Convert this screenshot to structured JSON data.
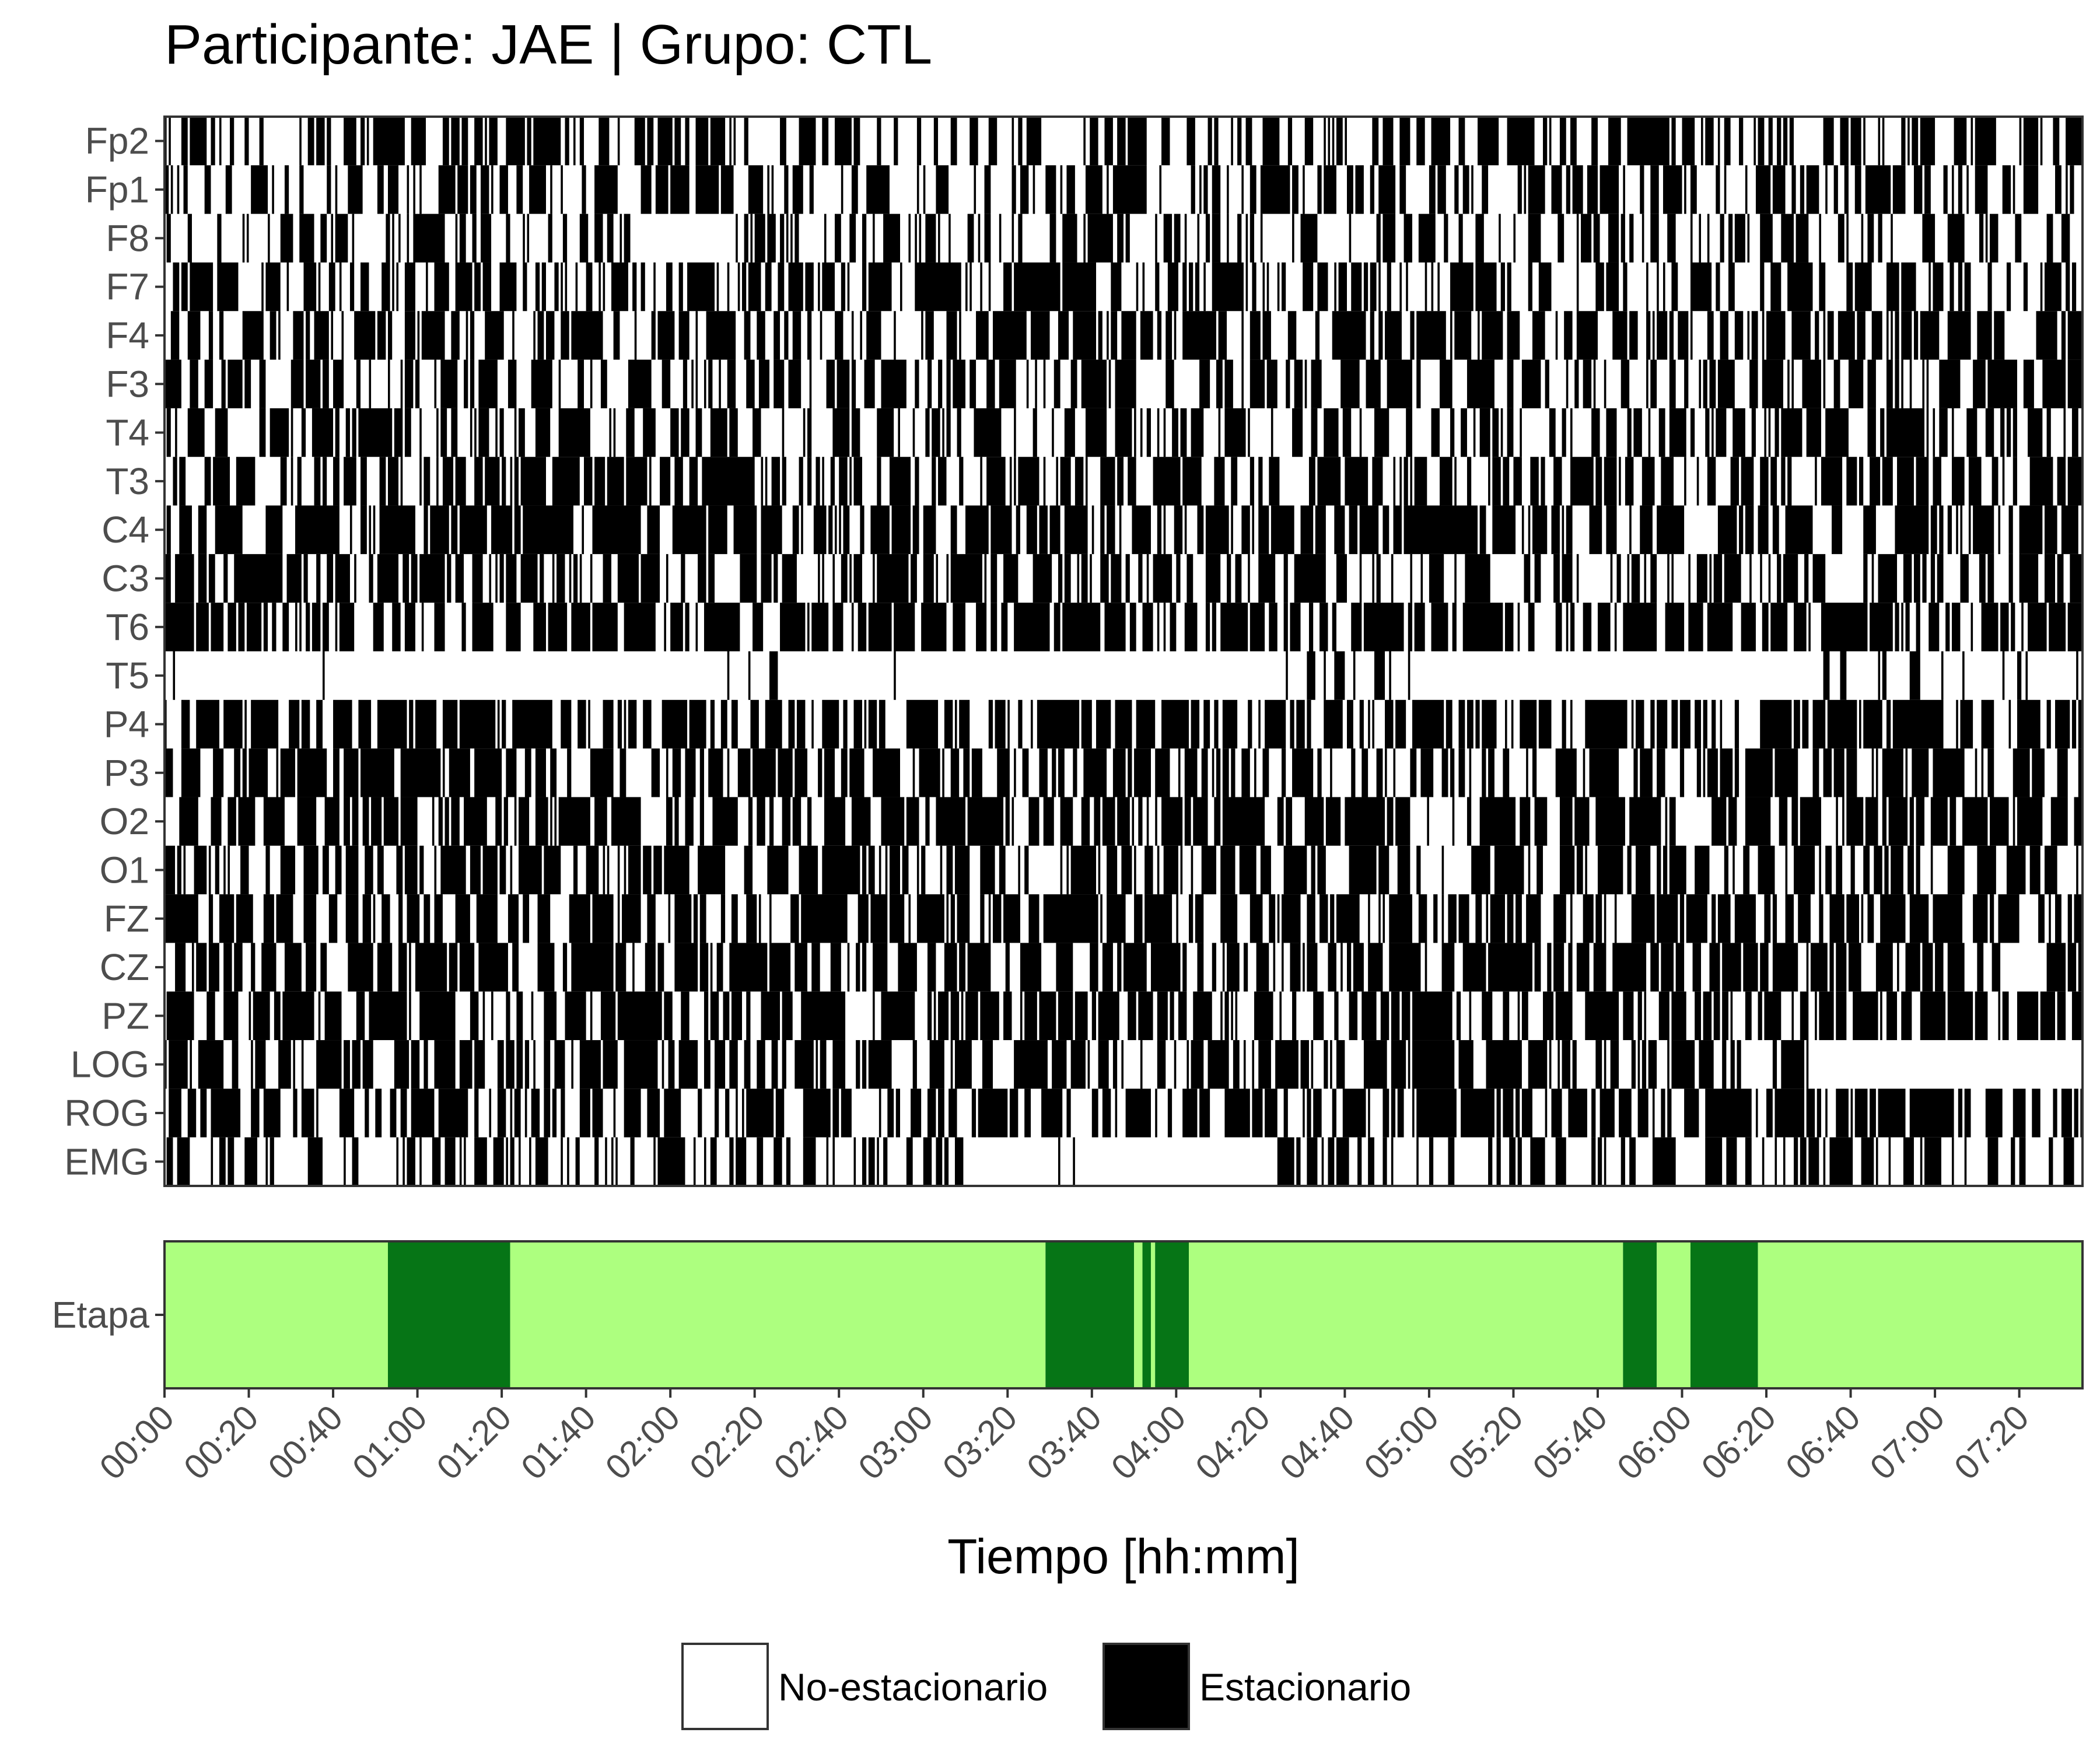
{
  "title": "Participante: JAE | Grupo: CTL",
  "colors": {
    "non_stationary": "#ffffff",
    "stationary": "#000000",
    "stage_light": "#adff7f",
    "stage_dark": "#067516",
    "axis_text": "#4d4d4d",
    "border": "#333333"
  },
  "chart_data": [
    {
      "type": "heatmap",
      "title": "Participante: JAE | Grupo: CTL",
      "xlabel": "Tiempo [hh:mm]",
      "ylabel": "",
      "channels": [
        "Fp2",
        "Fp1",
        "F8",
        "F7",
        "F4",
        "F3",
        "T4",
        "T3",
        "C4",
        "C3",
        "T6",
        "T5",
        "P4",
        "P3",
        "O2",
        "O1",
        "FZ",
        "CZ",
        "PZ",
        "LOG",
        "ROG",
        "EMG"
      ],
      "x_range_minutes": [
        0,
        455
      ],
      "x_ticks": [
        "00:00",
        "00:20",
        "00:40",
        "01:00",
        "01:20",
        "01:40",
        "02:00",
        "02:20",
        "02:40",
        "03:00",
        "03:20",
        "03:40",
        "04:00",
        "04:20",
        "04:40",
        "05:00",
        "05:20",
        "05:40",
        "06:00",
        "06:20",
        "06:40",
        "07:00",
        "07:20"
      ],
      "x_tick_step_minutes": 20,
      "epoch_seconds": 30,
      "stationary_fraction": {
        "Fp2": 0.5,
        "Fp1": 0.5,
        "F8": 0.45,
        "F7": 0.55,
        "F4": 0.55,
        "F3": 0.55,
        "T4": 0.5,
        "T3": 0.6,
        "C4": 0.65,
        "C3": 0.6,
        "T6": 0.65,
        "T5": 0.15,
        "P4": 0.65,
        "P3": 0.6,
        "O2": 0.65,
        "O1": 0.6,
        "FZ": 0.6,
        "CZ": 0.65,
        "PZ": 0.65,
        "LOG": 0.6,
        "ROG": 0.65,
        "EMG": 0.4
      },
      "regions": [
        {
          "channel": "T5",
          "start": "00:05",
          "end": "02:00",
          "state": "No-estacionario"
        },
        {
          "channel": "T5",
          "start": "02:34",
          "end": "04:25",
          "state": "No-estacionario"
        },
        {
          "channel": "T5",
          "start": "05:05",
          "end": "06:32",
          "state": "No-estacionario"
        },
        {
          "channel": "LOG",
          "start": "06:32",
          "end": "07:35",
          "state": "No-estacionario"
        },
        {
          "channel": "F8",
          "start": "01:50",
          "end": "02:15",
          "state": "No-estacionario"
        },
        {
          "channel": "EMG",
          "start": "03:10",
          "end": "04:20",
          "state": "No-estacionario"
        }
      ],
      "legend": {
        "position": "bottom",
        "entries": [
          {
            "label": "No-estacionario",
            "color": "#ffffff"
          },
          {
            "label": "Estacionario",
            "color": "#000000"
          }
        ]
      }
    },
    {
      "type": "heatmap",
      "ylabel": "",
      "row_label": "Etapa",
      "x_range_minutes": [
        0,
        455
      ],
      "segments_minutes": [
        {
          "start": 0,
          "end": 53,
          "color": "light"
        },
        {
          "start": 53,
          "end": 82,
          "color": "dark"
        },
        {
          "start": 82,
          "end": 209,
          "color": "light"
        },
        {
          "start": 209,
          "end": 230,
          "color": "dark"
        },
        {
          "start": 230,
          "end": 232,
          "color": "light"
        },
        {
          "start": 232,
          "end": 234,
          "color": "dark"
        },
        {
          "start": 234,
          "end": 235,
          "color": "light"
        },
        {
          "start": 235,
          "end": 243,
          "color": "dark"
        },
        {
          "start": 243,
          "end": 346,
          "color": "light"
        },
        {
          "start": 346,
          "end": 354,
          "color": "dark"
        },
        {
          "start": 354,
          "end": 362,
          "color": "light"
        },
        {
          "start": 362,
          "end": 378,
          "color": "dark"
        },
        {
          "start": 378,
          "end": 455,
          "color": "light"
        }
      ]
    }
  ]
}
